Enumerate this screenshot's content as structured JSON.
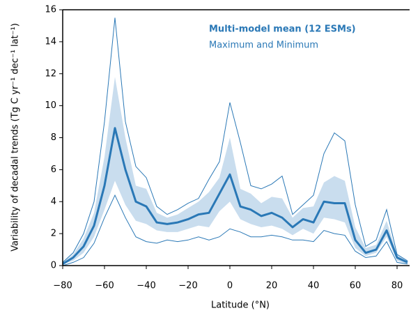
{
  "chart_data": {
    "type": "line",
    "x_label": "Latitude (°N)",
    "y_label": "Variability of decadal trends (Tg C yr⁻¹ dec⁻¹ lat⁻¹)",
    "x": [
      -80,
      -75,
      -70,
      -65,
      -60,
      -55,
      -50,
      -45,
      -40,
      -35,
      -30,
      -25,
      -20,
      -15,
      -10,
      -5,
      0,
      5,
      10,
      15,
      20,
      25,
      30,
      35,
      40,
      45,
      50,
      55,
      60,
      65,
      70,
      75,
      80,
      85
    ],
    "series": [
      {
        "name": "Multi-model mean (12 ESMs)",
        "color": "#2a78b6",
        "values": [
          0.1,
          0.5,
          1.2,
          2.5,
          5.0,
          8.6,
          6.0,
          4.0,
          3.7,
          2.7,
          2.6,
          2.7,
          2.9,
          3.2,
          3.3,
          4.5,
          5.7,
          3.7,
          3.5,
          3.1,
          3.3,
          3.0,
          2.4,
          2.9,
          2.7,
          4.0,
          3.9,
          3.9,
          1.6,
          0.8,
          1.0,
          2.2,
          0.5,
          0.2
        ]
      },
      {
        "name": "Maximum and Minimum",
        "color": "#2a78b6",
        "max": [
          0.2,
          0.8,
          2.0,
          4.0,
          9.0,
          15.5,
          9.0,
          6.2,
          5.5,
          3.7,
          3.2,
          3.5,
          3.9,
          4.2,
          5.4,
          6.5,
          10.2,
          7.7,
          5.0,
          4.8,
          5.1,
          5.6,
          3.2,
          3.8,
          4.4,
          7.0,
          8.3,
          7.8,
          3.8,
          1.2,
          1.6,
          3.5,
          0.7,
          0.3
        ],
        "min": [
          0.0,
          0.2,
          0.5,
          1.4,
          3.0,
          4.4,
          3.0,
          1.8,
          1.5,
          1.4,
          1.6,
          1.5,
          1.6,
          1.8,
          1.6,
          1.8,
          2.3,
          2.1,
          1.8,
          1.8,
          1.9,
          1.8,
          1.6,
          1.6,
          1.5,
          2.2,
          2.0,
          1.9,
          0.9,
          0.5,
          0.6,
          1.5,
          0.2,
          0.1
        ]
      }
    ],
    "band": {
      "color": "#c9ddee",
      "lower": [
        0.1,
        0.3,
        0.8,
        1.8,
        3.5,
        5.3,
        3.8,
        2.8,
        2.6,
        2.2,
        2.1,
        2.1,
        2.3,
        2.5,
        2.4,
        3.4,
        4.0,
        2.9,
        2.6,
        2.4,
        2.5,
        2.3,
        1.9,
        2.3,
        2.0,
        3.0,
        2.9,
        2.7,
        1.1,
        0.6,
        0.8,
        1.8,
        0.3,
        0.1
      ],
      "upper": [
        0.2,
        0.7,
        1.7,
        3.3,
        6.8,
        11.8,
        8.0,
        5.0,
        4.8,
        3.3,
        3.0,
        3.2,
        3.6,
        4.0,
        4.6,
        5.5,
        8.0,
        4.8,
        4.5,
        3.9,
        4.3,
        4.2,
        3.0,
        3.6,
        3.7,
        5.2,
        5.6,
        5.3,
        2.4,
        1.1,
        1.3,
        2.8,
        0.7,
        0.3
      ]
    },
    "xlim": [
      -80,
      86
    ],
    "ylim": [
      0,
      16
    ],
    "xticks": [
      {
        "value": -80,
        "label": "−80"
      },
      {
        "value": -60,
        "label": "−60"
      },
      {
        "value": -40,
        "label": "−40"
      },
      {
        "value": -20,
        "label": "−20"
      },
      0,
      20,
      40,
      60,
      80
    ],
    "yticks": [
      0,
      2,
      4,
      6,
      8,
      10,
      12,
      14,
      16
    ]
  }
}
